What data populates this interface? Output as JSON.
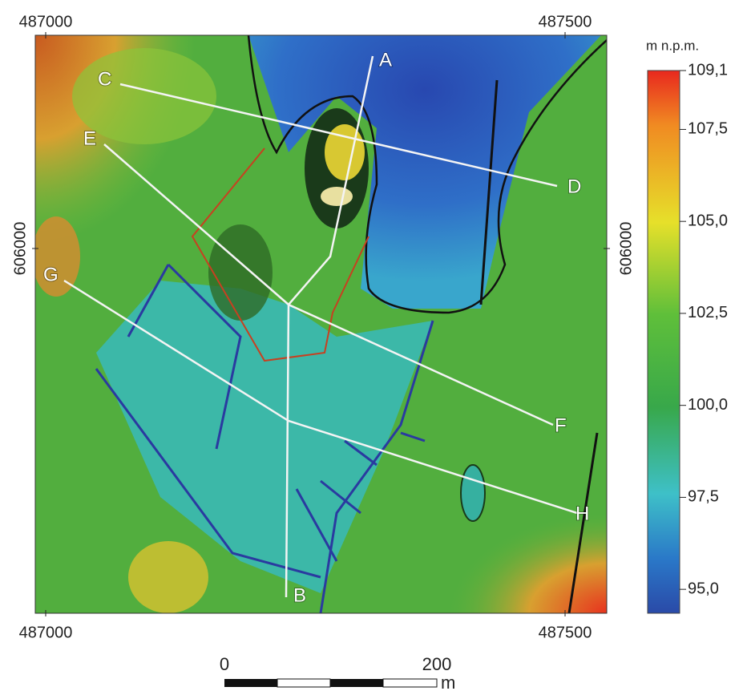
{
  "map": {
    "coords": {
      "top_left": 487000,
      "top_right": 487500,
      "bottom_left": 487000,
      "bottom_right": 487500,
      "left": 606000,
      "right": 606000
    },
    "profiles": [
      {
        "start": "A",
        "end": "B"
      },
      {
        "start": "C",
        "end": "D"
      },
      {
        "start": "E",
        "end": "F"
      },
      {
        "start": "G",
        "end": "H"
      }
    ],
    "legend": {
      "unit": "m n.p.m.",
      "lim": [
        94.35,
        109.1
      ],
      "ticks": [
        {
          "value": 109.1,
          "label": "109,1"
        },
        {
          "value": 107.5,
          "label": "107,5"
        },
        {
          "value": 105,
          "label": "105,0"
        },
        {
          "value": 102.5,
          "label": "102,5"
        },
        {
          "value": 100,
          "label": "100,0"
        },
        {
          "value": 97.5,
          "label": "97,5"
        },
        {
          "value": 95,
          "label": "95,0"
        }
      ]
    },
    "scale_bar": {
      "start": 0,
      "end": 200,
      "unit": "m"
    }
  }
}
